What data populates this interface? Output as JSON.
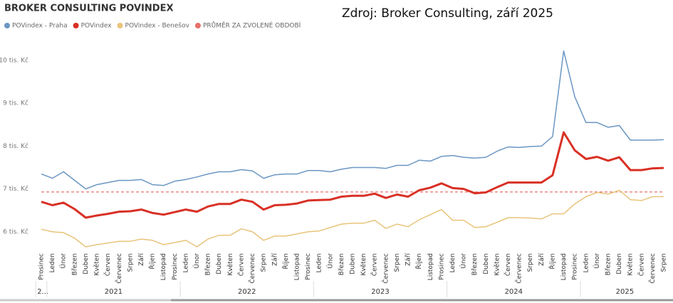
{
  "chart_data": {
    "type": "line",
    "title": "BROKER CONSULTING POVINDEX",
    "source": "Zdroj: Broker Consulting, září 2025",
    "categories": [
      "Prosinec",
      "Leden",
      "Únor",
      "Březen",
      "Duben",
      "Květen",
      "Červen",
      "Červenec",
      "Srpen",
      "Září",
      "Říjen",
      "Listopad",
      "Prosinec",
      "Leden",
      "Únor",
      "Březen",
      "Duben",
      "Květen",
      "Červen",
      "Červenec",
      "Srpen",
      "Září",
      "Říjen",
      "Listopad",
      "Prosinec",
      "Leden",
      "Únor",
      "Březen",
      "Duben",
      "Květen",
      "Červen",
      "Červenec",
      "Srpen",
      "Září",
      "Říjen",
      "Listopad",
      "Prosinec",
      "Leden",
      "Únor",
      "Březen",
      "Duben",
      "Květen",
      "Červen",
      "Červenec",
      "Srpen",
      "Září",
      "Říjen",
      "Listopad",
      "Prosinec",
      "Leden",
      "Únor",
      "Březen",
      "Duben",
      "Květen",
      "Červen",
      "Červenec",
      "Srpen"
    ],
    "year_labels": [
      "2...",
      "2021",
      "2022",
      "2023",
      "2024",
      "2025"
    ],
    "series": [
      {
        "name": "POVindex - Praha",
        "color": "#6b97c4",
        "width": 1.5,
        "values": [
          7350,
          7250,
          7400,
          7200,
          7000,
          7100,
          7150,
          7200,
          7200,
          7220,
          7100,
          7080,
          7180,
          7220,
          7280,
          7350,
          7400,
          7400,
          7450,
          7420,
          7250,
          7330,
          7350,
          7350,
          7430,
          7430,
          7400,
          7460,
          7500,
          7500,
          7500,
          7480,
          7550,
          7550,
          7670,
          7650,
          7760,
          7780,
          7740,
          7720,
          7740,
          7880,
          7980,
          7970,
          7990,
          8000,
          8220,
          10220,
          9150,
          8550,
          8550,
          8440,
          8480,
          8140,
          8140,
          8140,
          8150
        ]
      },
      {
        "name": "POVindex",
        "color": "#d93025",
        "width": 3,
        "values": [
          6700,
          6620,
          6680,
          6530,
          6330,
          6380,
          6420,
          6470,
          6480,
          6520,
          6440,
          6400,
          6460,
          6520,
          6470,
          6590,
          6650,
          6650,
          6750,
          6700,
          6520,
          6620,
          6630,
          6660,
          6730,
          6740,
          6750,
          6820,
          6840,
          6840,
          6890,
          6790,
          6870,
          6820,
          6970,
          7030,
          7130,
          7020,
          7000,
          6900,
          6920,
          7040,
          7150,
          7150,
          7150,
          7150,
          7320,
          8320,
          7900,
          7700,
          7750,
          7660,
          7740,
          7440,
          7440,
          7480,
          7490
        ]
      },
      {
        "name": "POVindex - Benešov",
        "color": "#e8c47a",
        "width": 1.5,
        "values": [
          6060,
          6000,
          5980,
          5850,
          5650,
          5700,
          5740,
          5780,
          5780,
          5830,
          5800,
          5700,
          5750,
          5800,
          5650,
          5830,
          5920,
          5920,
          6070,
          6000,
          5800,
          5900,
          5900,
          5950,
          6000,
          6020,
          6100,
          6180,
          6200,
          6200,
          6270,
          6080,
          6180,
          6120,
          6280,
          6400,
          6520,
          6270,
          6270,
          6100,
          6120,
          6220,
          6330,
          6330,
          6320,
          6300,
          6420,
          6420,
          6650,
          6820,
          6920,
          6880,
          6970,
          6750,
          6730,
          6820,
          6820
        ]
      }
    ],
    "reference_line": {
      "name": "PRŮMĚR ZA ZVOLENÉ OBDOBÍ",
      "value": 6930,
      "color": "#e8716a"
    },
    "ylim": [
      5600,
      10330
    ],
    "yticks": [
      {
        "value": 6000,
        "label": "6 tis. Kč"
      },
      {
        "value": 7000,
        "label": "7 tis. Kč"
      },
      {
        "value": 8000,
        "label": "8 tis. Kč"
      },
      {
        "value": 9000,
        "label": "9 tis. Kč"
      },
      {
        "value": 10000,
        "label": "10 tis. Kč"
      }
    ],
    "grid": false
  }
}
